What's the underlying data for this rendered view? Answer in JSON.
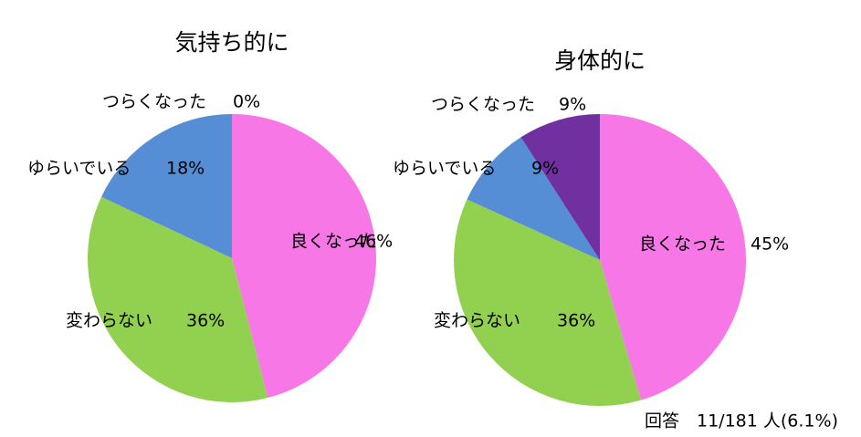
{
  "chart_data": [
    {
      "type": "pie",
      "title": "気持ち的に",
      "categories": [
        "良くなった",
        "変わらない",
        "ゆらいでいる",
        "つらくなった"
      ],
      "values": [
        46,
        36,
        18,
        0
      ],
      "value_labels": [
        "46%",
        "36%",
        "18%",
        "0%"
      ],
      "colors": [
        "#f777e6",
        "#92d050",
        "#558ed5",
        "#7030a0"
      ]
    },
    {
      "type": "pie",
      "title": "身体的に",
      "categories": [
        "良くなった",
        "変わらない",
        "ゆらいでいる",
        "つらくなった"
      ],
      "values": [
        45,
        36,
        9,
        9
      ],
      "value_labels": [
        "45%",
        "36%",
        "9%",
        "9%"
      ],
      "colors": [
        "#f777e6",
        "#92d050",
        "#558ed5",
        "#7030a0"
      ]
    }
  ],
  "note": "回答　11/181 人(6.1%)"
}
